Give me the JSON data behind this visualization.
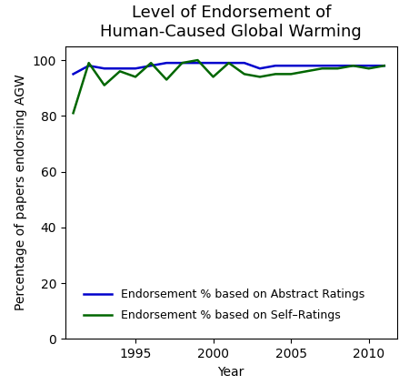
{
  "title": "Level of Endorsement of\nHuman-Caused Global Warming",
  "xlabel": "Year",
  "ylabel": "Percentage of papers endorsing AGW",
  "years": [
    1991,
    1992,
    1993,
    1994,
    1995,
    1996,
    1997,
    1998,
    1999,
    2000,
    2001,
    2002,
    2003,
    2004,
    2005,
    2006,
    2007,
    2008,
    2009,
    2010,
    2011
  ],
  "abstract_ratings": [
    95,
    98,
    97,
    97,
    97,
    98,
    99,
    99,
    99,
    99,
    99,
    99,
    97,
    98,
    98,
    98,
    98,
    98,
    98,
    98,
    98
  ],
  "self_ratings": [
    81,
    99,
    91,
    96,
    94,
    99,
    93,
    99,
    100,
    94,
    99,
    95,
    94,
    95,
    95,
    96,
    97,
    97,
    98,
    97,
    98
  ],
  "abstract_color": "#0000cc",
  "self_color": "#006600",
  "abstract_label": "Endorsement % based on Abstract Ratings",
  "self_label": "Endorsement % based on Self–Ratings",
  "ylim": [
    0,
    105
  ],
  "yticks": [
    0,
    20,
    40,
    60,
    80,
    100
  ],
  "xlim": [
    1990.5,
    2011.8
  ],
  "xticks": [
    1995,
    2000,
    2005,
    2010
  ],
  "line_width": 1.8,
  "title_fontsize": 13,
  "label_fontsize": 10,
  "tick_fontsize": 10,
  "legend_fontsize": 9,
  "bg_color": "#ffffff"
}
